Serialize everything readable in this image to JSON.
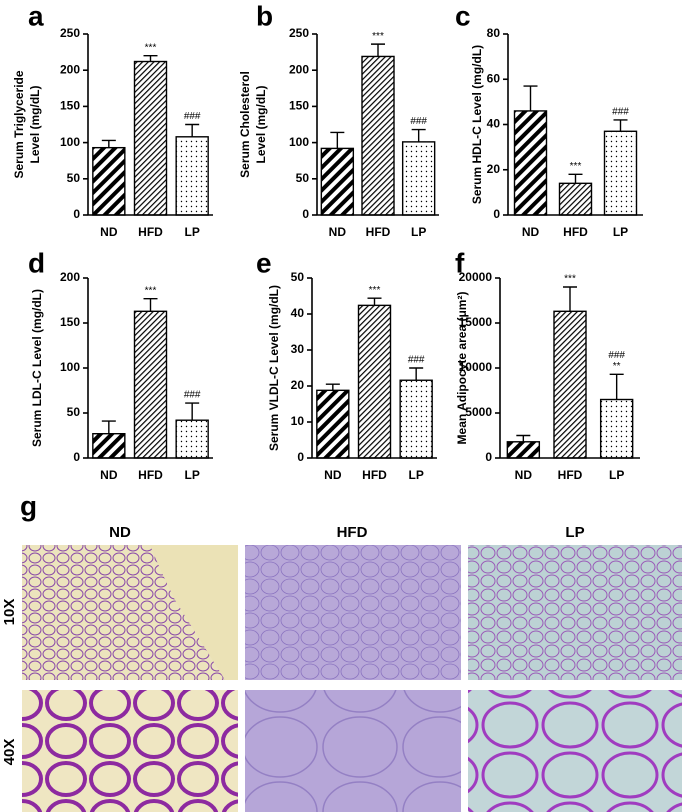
{
  "chart_data": [
    {
      "type": "bar",
      "panel": "a",
      "ylabel": [
        "Serum Triglyceride",
        "Level (mg/dL)"
      ],
      "categories": [
        "ND",
        "HFD",
        "LP"
      ],
      "values": [
        93,
        212,
        108
      ],
      "errors": [
        10,
        8,
        17
      ],
      "annotations": [
        [],
        [
          "***"
        ],
        [
          "###"
        ]
      ],
      "ylim": [
        0,
        250
      ],
      "yticks": [
        0,
        50,
        100,
        150,
        200,
        250
      ],
      "bar_patterns": [
        "wide-stripes",
        "hatch",
        "dots"
      ]
    },
    {
      "type": "bar",
      "panel": "b",
      "ylabel": [
        "Serum Cholesterol",
        "Level (mg/dL)"
      ],
      "categories": [
        "ND",
        "HFD",
        "LP"
      ],
      "values": [
        92,
        219,
        101
      ],
      "errors": [
        22,
        17,
        17
      ],
      "annotations": [
        [],
        [
          "***"
        ],
        [
          "###"
        ]
      ],
      "ylim": [
        0,
        250
      ],
      "yticks": [
        0,
        50,
        100,
        150,
        200,
        250
      ],
      "bar_patterns": [
        "wide-stripes",
        "hatch",
        "dots"
      ]
    },
    {
      "type": "bar",
      "panel": "c",
      "ylabel": [
        "Serum HDL-C Level (mg/dL)"
      ],
      "categories": [
        "ND",
        "HFD",
        "LP"
      ],
      "values": [
        46,
        14,
        37
      ],
      "errors": [
        11,
        4,
        5
      ],
      "annotations": [
        [],
        [
          "***"
        ],
        [
          "###"
        ]
      ],
      "ylim": [
        0,
        80
      ],
      "yticks": [
        0,
        20,
        40,
        60,
        80
      ],
      "bar_patterns": [
        "wide-stripes",
        "hatch",
        "dots"
      ]
    },
    {
      "type": "bar",
      "panel": "d",
      "ylabel": [
        "Serum LDL-C Level (mg/dL)"
      ],
      "categories": [
        "ND",
        "HFD",
        "LP"
      ],
      "values": [
        27,
        163,
        42
      ],
      "errors": [
        14,
        14,
        19
      ],
      "annotations": [
        [],
        [
          "***"
        ],
        [
          "###"
        ]
      ],
      "ylim": [
        0,
        200
      ],
      "yticks": [
        0,
        50,
        100,
        150,
        200
      ],
      "bar_patterns": [
        "wide-stripes",
        "hatch",
        "dots"
      ]
    },
    {
      "type": "bar",
      "panel": "e",
      "ylabel": [
        "Serum VLDL-C Level (mg/dL)"
      ],
      "categories": [
        "ND",
        "HFD",
        "LP"
      ],
      "values": [
        18.8,
        42.4,
        21.6
      ],
      "errors": [
        1.7,
        2,
        3.4
      ],
      "annotations": [
        [],
        [
          "***"
        ],
        [
          "###"
        ]
      ],
      "ylim": [
        0,
        50
      ],
      "yticks": [
        0,
        10,
        20,
        30,
        40,
        50
      ],
      "bar_patterns": [
        "wide-stripes",
        "hatch",
        "dots"
      ]
    },
    {
      "type": "bar",
      "panel": "f",
      "ylabel": [
        "Mean Adipocyte area (μm²)"
      ],
      "categories": [
        "ND",
        "HFD",
        "LP"
      ],
      "values": [
        1800,
        16300,
        6500
      ],
      "errors": [
        700,
        2700,
        2800
      ],
      "annotations": [
        [],
        [
          "***"
        ],
        [
          "###",
          "**"
        ]
      ],
      "ylim": [
        0,
        20000
      ],
      "yticks": [
        0,
        5000,
        10000,
        15000,
        20000
      ],
      "bar_patterns": [
        "wide-stripes",
        "hatch",
        "dots"
      ]
    }
  ],
  "histology": {
    "panel": "g",
    "columns": [
      "ND",
      "HFD",
      "LP"
    ],
    "rows": [
      "10X",
      "40X"
    ]
  }
}
